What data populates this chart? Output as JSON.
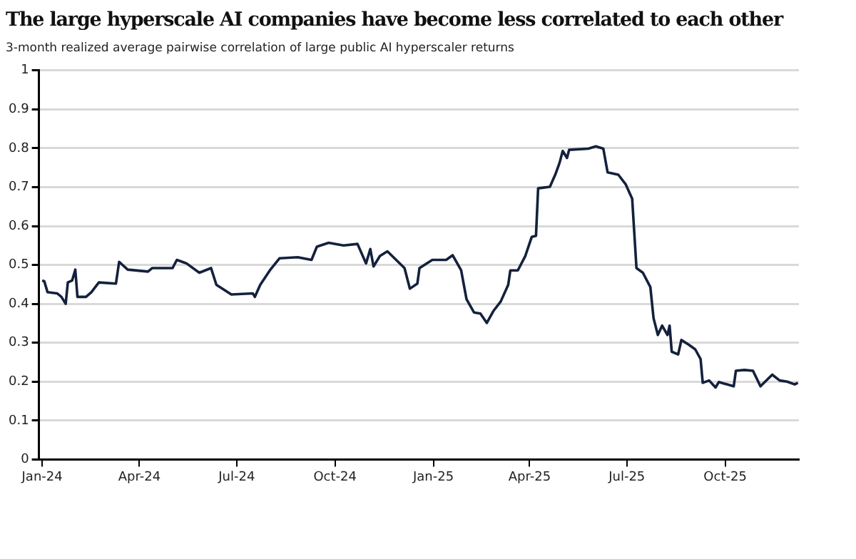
{
  "chart_data": {
    "type": "line",
    "title": "The large hyperscale AI companies have become less correlated to each other",
    "subtitle": "3-month realized average pairwise correlation of large public AI hyperscaler returns",
    "x": [
      "2024-01-01",
      "2024-01-03",
      "2024-01-06",
      "2024-01-15",
      "2024-01-19",
      "2024-01-23",
      "2024-01-25",
      "2024-01-29",
      "2024-02-01",
      "2024-02-03",
      "2024-02-11",
      "2024-02-16",
      "2024-02-23",
      "2024-03-10",
      "2024-03-13",
      "2024-03-21",
      "2024-04-09",
      "2024-04-13",
      "2024-05-02",
      "2024-05-06",
      "2024-05-15",
      "2024-05-27",
      "2024-06-07",
      "2024-06-12",
      "2024-06-26",
      "2024-07-16",
      "2024-07-18",
      "2024-07-23",
      "2024-08-01",
      "2024-08-10",
      "2024-08-27",
      "2024-09-09",
      "2024-09-14",
      "2024-09-25",
      "2024-10-09",
      "2024-10-22",
      "2024-10-30",
      "2024-11-03",
      "2024-11-06",
      "2024-11-12",
      "2024-11-19",
      "2024-12-05",
      "2024-12-10",
      "2024-12-17",
      "2024-12-19",
      "2024-12-31",
      "2025-01-13",
      "2025-01-19",
      "2025-01-27",
      "2025-02-01",
      "2025-02-08",
      "2025-02-14",
      "2025-02-20",
      "2025-02-26",
      "2025-03-05",
      "2025-03-12",
      "2025-03-14",
      "2025-03-21",
      "2025-03-28",
      "2025-04-03",
      "2025-04-07",
      "2025-04-09",
      "2025-04-20",
      "2025-04-25",
      "2025-04-29",
      "2025-05-02",
      "2025-05-06",
      "2025-05-08",
      "2025-05-26",
      "2025-06-02",
      "2025-06-09",
      "2025-06-13",
      "2025-06-23",
      "2025-06-30",
      "2025-07-06",
      "2025-07-10",
      "2025-07-16",
      "2025-07-23",
      "2025-07-26",
      "2025-07-30",
      "2025-08-03",
      "2025-08-08",
      "2025-08-10",
      "2025-08-12",
      "2025-08-18",
      "2025-08-21",
      "2025-08-28",
      "2025-09-03",
      "2025-09-08",
      "2025-09-10",
      "2025-09-16",
      "2025-09-22",
      "2025-09-25",
      "2025-10-09",
      "2025-10-11",
      "2025-10-19",
      "2025-10-27",
      "2025-11-03",
      "2025-11-14",
      "2025-11-21",
      "2025-11-28",
      "2025-12-05",
      "2025-12-08"
    ],
    "series": [
      {
        "color": "#14213d",
        "values": [
          0.46,
          0.458,
          0.43,
          0.427,
          0.418,
          0.4,
          0.455,
          0.46,
          0.488,
          0.418,
          0.418,
          0.43,
          0.455,
          0.452,
          0.508,
          0.488,
          0.483,
          0.492,
          0.492,
          0.513,
          0.504,
          0.48,
          0.492,
          0.449,
          0.424,
          0.427,
          0.418,
          0.449,
          0.486,
          0.517,
          0.52,
          0.513,
          0.547,
          0.557,
          0.55,
          0.554,
          0.504,
          0.541,
          0.496,
          0.523,
          0.535,
          0.492,
          0.439,
          0.452,
          0.492,
          0.513,
          0.513,
          0.525,
          0.486,
          0.412,
          0.378,
          0.375,
          0.351,
          0.381,
          0.406,
          0.449,
          0.486,
          0.486,
          0.523,
          0.572,
          0.575,
          0.697,
          0.701,
          0.732,
          0.762,
          0.793,
          0.775,
          0.796,
          0.799,
          0.805,
          0.799,
          0.738,
          0.732,
          0.707,
          0.67,
          0.492,
          0.48,
          0.443,
          0.363,
          0.32,
          0.344,
          0.32,
          0.344,
          0.277,
          0.27,
          0.307,
          0.295,
          0.283,
          0.258,
          0.197,
          0.203,
          0.185,
          0.199,
          0.188,
          0.228,
          0.23,
          0.228,
          0.188,
          0.218,
          0.203,
          0.2,
          0.193,
          0.197
        ]
      }
    ],
    "xlim": [
      "2023-12-29",
      "2025-12-09"
    ],
    "xticks": [
      {
        "value": "2024-01-01",
        "label": "Jan-24"
      },
      {
        "value": "2024-04-01",
        "label": "Apr-24"
      },
      {
        "value": "2024-07-01",
        "label": "Jul-24"
      },
      {
        "value": "2024-10-01",
        "label": "Oct-24"
      },
      {
        "value": "2025-01-01",
        "label": "Jan-25"
      },
      {
        "value": "2025-04-01",
        "label": "Apr-25"
      },
      {
        "value": "2025-07-01",
        "label": "Jul-25"
      },
      {
        "value": "2025-10-01",
        "label": "Oct-25"
      }
    ],
    "ylim": [
      0,
      1
    ],
    "yticks": [
      0,
      0.1,
      0.2,
      0.3,
      0.4,
      0.5,
      0.6,
      0.7,
      0.8,
      0.9,
      1
    ],
    "grid": "y"
  }
}
